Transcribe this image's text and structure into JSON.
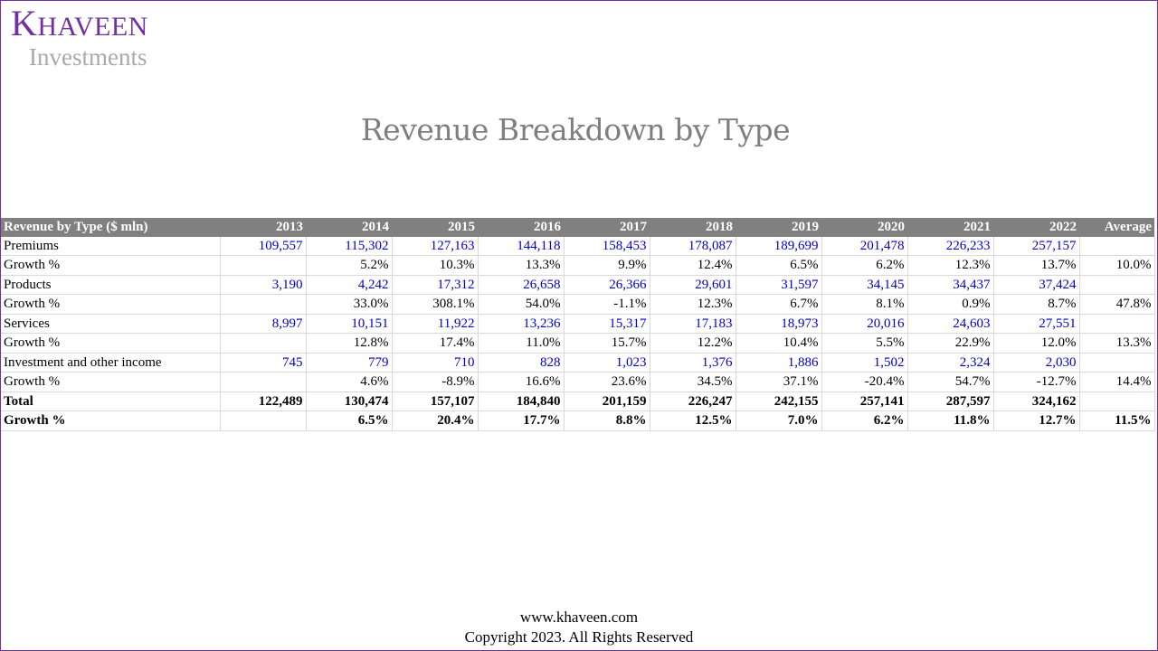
{
  "logo": {
    "initial": "K",
    "rest": "HAVEEN",
    "subtitle": "Investments",
    "color": "#7030a0"
  },
  "title": "Revenue Breakdown by Type",
  "table": {
    "headers": [
      "Revenue by Type ($ mln)",
      "2013",
      "2014",
      "2015",
      "2016",
      "2017",
      "2018",
      "2019",
      "2020",
      "2021",
      "2022",
      "Average"
    ],
    "rows": [
      {
        "type": "value",
        "cells": [
          "Premiums",
          "109,557",
          "115,302",
          "127,163",
          "144,118",
          "158,453",
          "178,087",
          "189,699",
          "201,478",
          "226,233",
          "257,157",
          ""
        ]
      },
      {
        "type": "growth",
        "cells": [
          "Growth %",
          "",
          "5.2%",
          "10.3%",
          "13.3%",
          "9.9%",
          "12.4%",
          "6.5%",
          "6.2%",
          "12.3%",
          "13.7%",
          "10.0%"
        ]
      },
      {
        "type": "value",
        "cells": [
          "Products",
          "3,190",
          "4,242",
          "17,312",
          "26,658",
          "26,366",
          "29,601",
          "31,597",
          "34,145",
          "34,437",
          "37,424",
          ""
        ]
      },
      {
        "type": "growth",
        "cells": [
          "Growth %",
          "",
          "33.0%",
          "308.1%",
          "54.0%",
          "-1.1%",
          "12.3%",
          "6.7%",
          "8.1%",
          "0.9%",
          "8.7%",
          "47.8%"
        ]
      },
      {
        "type": "value",
        "cells": [
          "Services",
          "8,997",
          "10,151",
          "11,922",
          "13,236",
          "15,317",
          "17,183",
          "18,973",
          "20,016",
          "24,603",
          "27,551",
          ""
        ]
      },
      {
        "type": "growth",
        "cells": [
          "Growth %",
          "",
          "12.8%",
          "17.4%",
          "11.0%",
          "15.7%",
          "12.2%",
          "10.4%",
          "5.5%",
          "22.9%",
          "12.0%",
          "13.3%"
        ]
      },
      {
        "type": "value",
        "cells": [
          "Investment and other income",
          "745",
          "779",
          "710",
          "828",
          "1,023",
          "1,376",
          "1,886",
          "1,502",
          "2,324",
          "2,030",
          ""
        ]
      },
      {
        "type": "growth",
        "cells": [
          "Growth %",
          "",
          "4.6%",
          "-8.9%",
          "16.6%",
          "23.6%",
          "34.5%",
          "37.1%",
          "-20.4%",
          "54.7%",
          "-12.7%",
          "14.4%"
        ]
      },
      {
        "type": "bold",
        "cells": [
          "Total",
          "122,489",
          "130,474",
          "157,107",
          "184,840",
          "201,159",
          "226,247",
          "242,155",
          "257,141",
          "287,597",
          "324,162",
          ""
        ]
      },
      {
        "type": "bold",
        "cells": [
          "Growth %",
          "",
          "6.5%",
          "20.4%",
          "17.7%",
          "8.8%",
          "12.5%",
          "7.0%",
          "6.2%",
          "11.8%",
          "12.7%",
          "11.5%"
        ]
      }
    ]
  },
  "footer": {
    "website": "www.khaveen.com",
    "copyright": "Copyright 2023.  All Rights Reserved"
  }
}
